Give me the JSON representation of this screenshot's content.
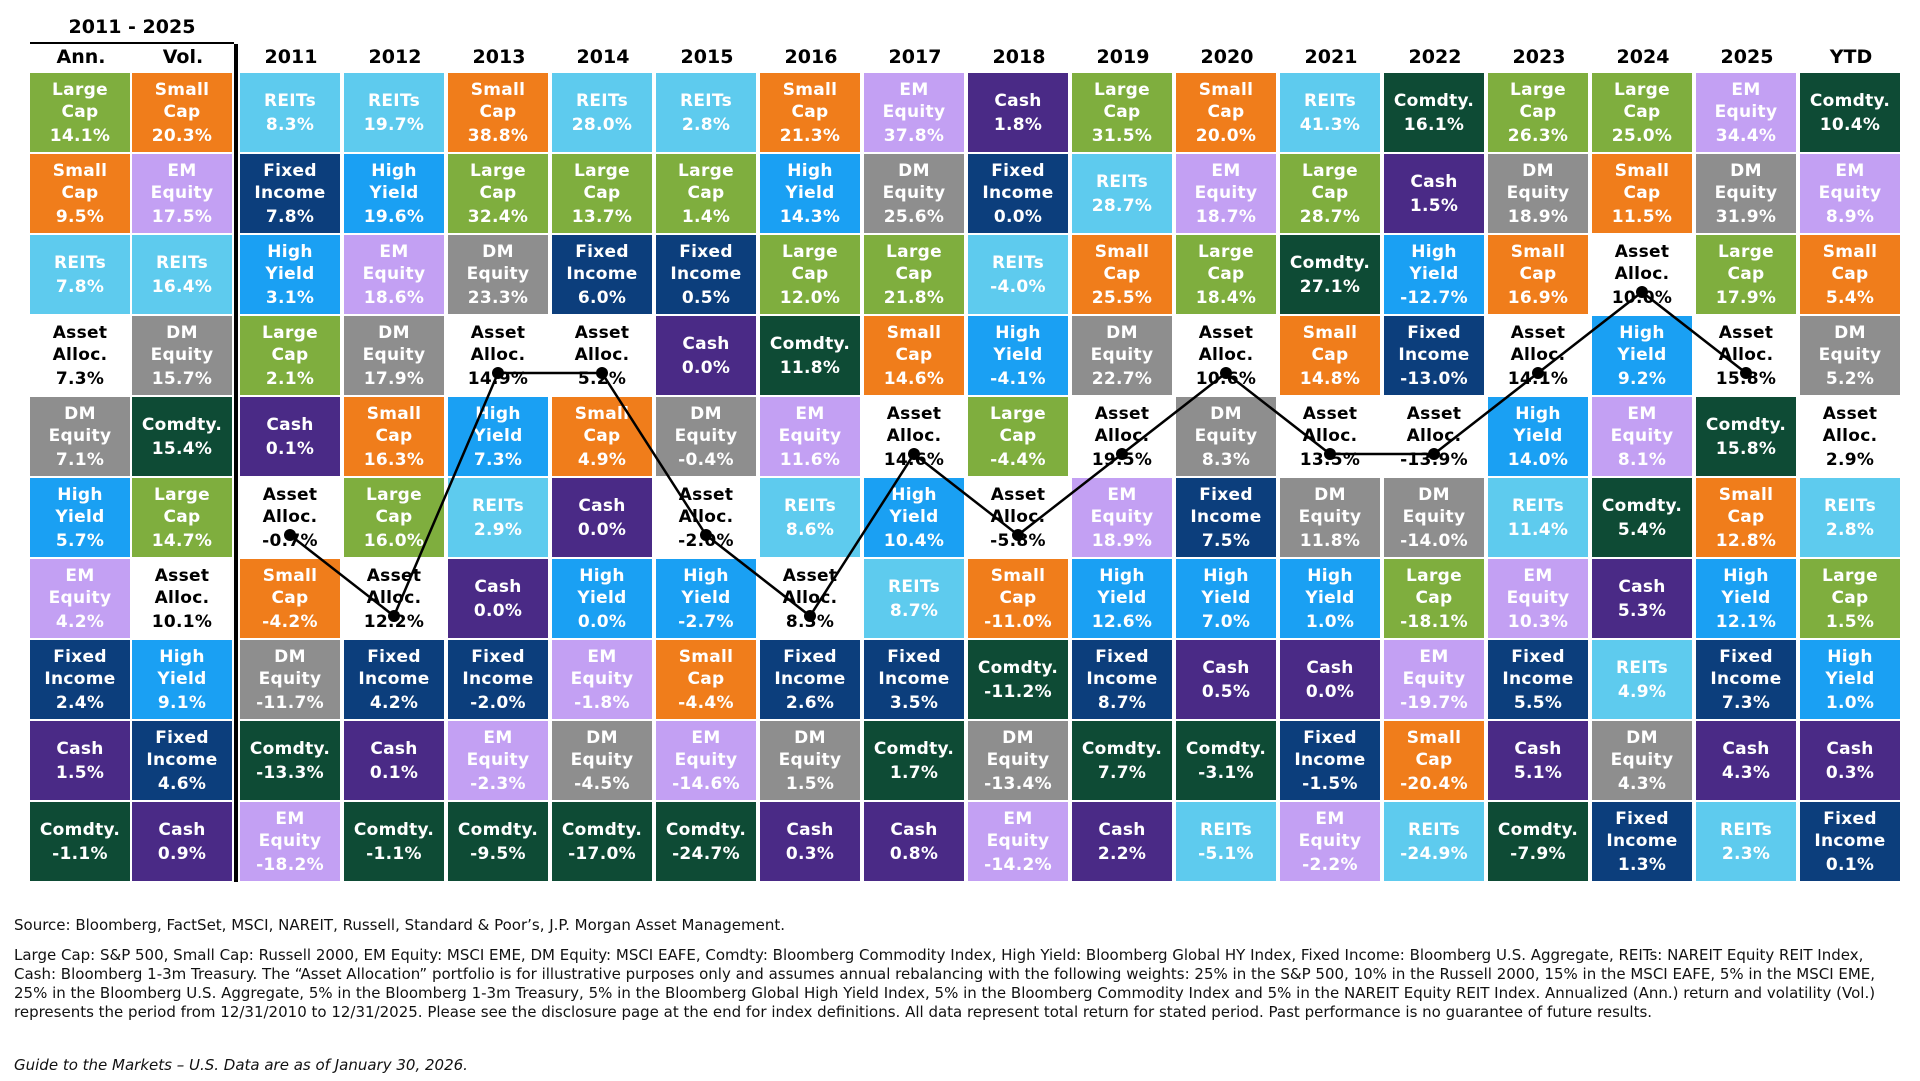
{
  "header": {
    "period": "2011 - 2025",
    "ann_label": "Ann.",
    "vol_label": "Vol.",
    "years": [
      "2011",
      "2012",
      "2013",
      "2014",
      "2015",
      "2016",
      "2017",
      "2018",
      "2019",
      "2020",
      "2021",
      "2022",
      "2023",
      "2024",
      "2025",
      "YTD"
    ]
  },
  "colors": {
    "Large Cap": "#7fae3e",
    "Small Cap": "#f07d1b",
    "EM Equity": "#c3a0f3",
    "DM Equity": "#8e8e8e",
    "REITs": "#5ecbee",
    "Asset Alloc.": "#ffffff",
    "High Yield": "#1aa0f3",
    "Fixed Income": "#0c3e7c",
    "Cash": "#4a2a86",
    "Comdty.": "#0e4b35"
  },
  "chart_data": {
    "type": "table",
    "title": "",
    "ann_vol": [
      {
        "ann": {
          "asset": "Large Cap",
          "value": "14.1%"
        },
        "vol": {
          "asset": "Small Cap",
          "value": "20.3%"
        }
      },
      {
        "ann": {
          "asset": "Small Cap",
          "value": "9.5%"
        },
        "vol": {
          "asset": "EM Equity",
          "value": "17.5%"
        }
      },
      {
        "ann": {
          "asset": "REITs",
          "value": "7.8%"
        },
        "vol": {
          "asset": "REITs",
          "value": "16.4%"
        }
      },
      {
        "ann": {
          "asset": "Asset Alloc.",
          "value": "7.3%"
        },
        "vol": {
          "asset": "DM Equity",
          "value": "15.7%"
        }
      },
      {
        "ann": {
          "asset": "DM Equity",
          "value": "7.1%"
        },
        "vol": {
          "asset": "Comdty.",
          "value": "15.4%"
        }
      },
      {
        "ann": {
          "asset": "High Yield",
          "value": "5.7%"
        },
        "vol": {
          "asset": "Large Cap",
          "value": "14.7%"
        }
      },
      {
        "ann": {
          "asset": "EM Equity",
          "value": "4.2%"
        },
        "vol": {
          "asset": "Asset Alloc.",
          "value": "10.1%"
        }
      },
      {
        "ann": {
          "asset": "Fixed Income",
          "value": "2.4%"
        },
        "vol": {
          "asset": "High Yield",
          "value": "9.1%"
        }
      },
      {
        "ann": {
          "asset": "Cash",
          "value": "1.5%"
        },
        "vol": {
          "asset": "Fixed Income",
          "value": "4.6%"
        }
      },
      {
        "ann": {
          "asset": "Comdty.",
          "value": "-1.1%"
        },
        "vol": {
          "asset": "Cash",
          "value": "0.9%"
        }
      }
    ],
    "years": [
      {
        "year": "2011",
        "cells": [
          [
            "REITs",
            "8.3%"
          ],
          [
            "Fixed Income",
            "7.8%"
          ],
          [
            "High Yield",
            "3.1%"
          ],
          [
            "Large Cap",
            "2.1%"
          ],
          [
            "Cash",
            "0.1%"
          ],
          [
            "Asset Alloc.",
            "-0.7%"
          ],
          [
            "Small Cap",
            "-4.2%"
          ],
          [
            "DM Equity",
            "-11.7%"
          ],
          [
            "Comdty.",
            "-13.3%"
          ],
          [
            "EM Equity",
            "-18.2%"
          ]
        ]
      },
      {
        "year": "2012",
        "cells": [
          [
            "REITs",
            "19.7%"
          ],
          [
            "High Yield",
            "19.6%"
          ],
          [
            "EM Equity",
            "18.6%"
          ],
          [
            "DM Equity",
            "17.9%"
          ],
          [
            "Small Cap",
            "16.3%"
          ],
          [
            "Large Cap",
            "16.0%"
          ],
          [
            "Asset Alloc.",
            "12.2%"
          ],
          [
            "Fixed Income",
            "4.2%"
          ],
          [
            "Cash",
            "0.1%"
          ],
          [
            "Comdty.",
            "-1.1%"
          ]
        ]
      },
      {
        "year": "2013",
        "cells": [
          [
            "Small Cap",
            "38.8%"
          ],
          [
            "Large Cap",
            "32.4%"
          ],
          [
            "DM Equity",
            "23.3%"
          ],
          [
            "Asset Alloc.",
            "14.9%"
          ],
          [
            "High Yield",
            "7.3%"
          ],
          [
            "REITs",
            "2.9%"
          ],
          [
            "Cash",
            "0.0%"
          ],
          [
            "Fixed Income",
            "-2.0%"
          ],
          [
            "EM Equity",
            "-2.3%"
          ],
          [
            "Comdty.",
            "-9.5%"
          ]
        ]
      },
      {
        "year": "2014",
        "cells": [
          [
            "REITs",
            "28.0%"
          ],
          [
            "Large Cap",
            "13.7%"
          ],
          [
            "Fixed Income",
            "6.0%"
          ],
          [
            "Asset Alloc.",
            "5.2%"
          ],
          [
            "Small Cap",
            "4.9%"
          ],
          [
            "Cash",
            "0.0%"
          ],
          [
            "High Yield",
            "0.0%"
          ],
          [
            "EM Equity",
            "-1.8%"
          ],
          [
            "DM Equity",
            "-4.5%"
          ],
          [
            "Comdty.",
            "-17.0%"
          ]
        ]
      },
      {
        "year": "2015",
        "cells": [
          [
            "REITs",
            "2.8%"
          ],
          [
            "Large Cap",
            "1.4%"
          ],
          [
            "Fixed Income",
            "0.5%"
          ],
          [
            "Cash",
            "0.0%"
          ],
          [
            "DM Equity",
            "-0.4%"
          ],
          [
            "Asset Alloc.",
            "-2.0%"
          ],
          [
            "High Yield",
            "-2.7%"
          ],
          [
            "Small Cap",
            "-4.4%"
          ],
          [
            "EM Equity",
            "-14.6%"
          ],
          [
            "Comdty.",
            "-24.7%"
          ]
        ]
      },
      {
        "year": "2016",
        "cells": [
          [
            "Small Cap",
            "21.3%"
          ],
          [
            "High Yield",
            "14.3%"
          ],
          [
            "Large Cap",
            "12.0%"
          ],
          [
            "Comdty.",
            "11.8%"
          ],
          [
            "EM Equity",
            "11.6%"
          ],
          [
            "REITs",
            "8.6%"
          ],
          [
            "Asset Alloc.",
            "8.3%"
          ],
          [
            "Fixed Income",
            "2.6%"
          ],
          [
            "DM Equity",
            "1.5%"
          ],
          [
            "Cash",
            "0.3%"
          ]
        ]
      },
      {
        "year": "2017",
        "cells": [
          [
            "EM Equity",
            "37.8%"
          ],
          [
            "DM Equity",
            "25.6%"
          ],
          [
            "Large Cap",
            "21.8%"
          ],
          [
            "Small Cap",
            "14.6%"
          ],
          [
            "Asset Alloc.",
            "14.6%"
          ],
          [
            "High Yield",
            "10.4%"
          ],
          [
            "REITs",
            "8.7%"
          ],
          [
            "Fixed Income",
            "3.5%"
          ],
          [
            "Comdty.",
            "1.7%"
          ],
          [
            "Cash",
            "0.8%"
          ]
        ]
      },
      {
        "year": "2018",
        "cells": [
          [
            "Cash",
            "1.8%"
          ],
          [
            "Fixed Income",
            "0.0%"
          ],
          [
            "REITs",
            "-4.0%"
          ],
          [
            "High Yield",
            "-4.1%"
          ],
          [
            "Large Cap",
            "-4.4%"
          ],
          [
            "Asset Alloc.",
            "-5.8%"
          ],
          [
            "Small Cap",
            "-11.0%"
          ],
          [
            "Comdty.",
            "-11.2%"
          ],
          [
            "DM Equity",
            "-13.4%"
          ],
          [
            "EM Equity",
            "-14.2%"
          ]
        ]
      },
      {
        "year": "2019",
        "cells": [
          [
            "Large Cap",
            "31.5%"
          ],
          [
            "REITs",
            "28.7%"
          ],
          [
            "Small Cap",
            "25.5%"
          ],
          [
            "DM Equity",
            "22.7%"
          ],
          [
            "Asset Alloc.",
            "19.5%"
          ],
          [
            "EM Equity",
            "18.9%"
          ],
          [
            "High Yield",
            "12.6%"
          ],
          [
            "Fixed Income",
            "8.7%"
          ],
          [
            "Comdty.",
            "7.7%"
          ],
          [
            "Cash",
            "2.2%"
          ]
        ]
      },
      {
        "year": "2020",
        "cells": [
          [
            "Small Cap",
            "20.0%"
          ],
          [
            "EM Equity",
            "18.7%"
          ],
          [
            "Large Cap",
            "18.4%"
          ],
          [
            "Asset Alloc.",
            "10.6%"
          ],
          [
            "DM Equity",
            "8.3%"
          ],
          [
            "Fixed Income",
            "7.5%"
          ],
          [
            "High Yield",
            "7.0%"
          ],
          [
            "Cash",
            "0.5%"
          ],
          [
            "Comdty.",
            "-3.1%"
          ],
          [
            "REITs",
            "-5.1%"
          ]
        ]
      },
      {
        "year": "2021",
        "cells": [
          [
            "REITs",
            "41.3%"
          ],
          [
            "Large Cap",
            "28.7%"
          ],
          [
            "Comdty.",
            "27.1%"
          ],
          [
            "Small Cap",
            "14.8%"
          ],
          [
            "Asset Alloc.",
            "13.5%"
          ],
          [
            "DM Equity",
            "11.8%"
          ],
          [
            "High Yield",
            "1.0%"
          ],
          [
            "Cash",
            "0.0%"
          ],
          [
            "Fixed Income",
            "-1.5%"
          ],
          [
            "EM Equity",
            "-2.2%"
          ]
        ]
      },
      {
        "year": "2022",
        "cells": [
          [
            "Comdty.",
            "16.1%"
          ],
          [
            "Cash",
            "1.5%"
          ],
          [
            "High Yield",
            "-12.7%"
          ],
          [
            "Fixed Income",
            "-13.0%"
          ],
          [
            "Asset Alloc.",
            "-13.9%"
          ],
          [
            "DM Equity",
            "-14.0%"
          ],
          [
            "Large Cap",
            "-18.1%"
          ],
          [
            "EM Equity",
            "-19.7%"
          ],
          [
            "Small Cap",
            "-20.4%"
          ],
          [
            "REITs",
            "-24.9%"
          ]
        ]
      },
      {
        "year": "2023",
        "cells": [
          [
            "Large Cap",
            "26.3%"
          ],
          [
            "DM Equity",
            "18.9%"
          ],
          [
            "Small Cap",
            "16.9%"
          ],
          [
            "Asset Alloc.",
            "14.1%"
          ],
          [
            "High Yield",
            "14.0%"
          ],
          [
            "REITs",
            "11.4%"
          ],
          [
            "EM Equity",
            "10.3%"
          ],
          [
            "Fixed Income",
            "5.5%"
          ],
          [
            "Cash",
            "5.1%"
          ],
          [
            "Comdty.",
            "-7.9%"
          ]
        ]
      },
      {
        "year": "2024",
        "cells": [
          [
            "Large Cap",
            "25.0%"
          ],
          [
            "Small Cap",
            "11.5%"
          ],
          [
            "Asset Alloc.",
            "10.0%"
          ],
          [
            "High Yield",
            "9.2%"
          ],
          [
            "EM Equity",
            "8.1%"
          ],
          [
            "Comdty.",
            "5.4%"
          ],
          [
            "Cash",
            "5.3%"
          ],
          [
            "REITs",
            "4.9%"
          ],
          [
            "DM Equity",
            "4.3%"
          ],
          [
            "Fixed Income",
            "1.3%"
          ]
        ]
      },
      {
        "year": "2025",
        "cells": [
          [
            "EM Equity",
            "34.4%"
          ],
          [
            "DM Equity",
            "31.9%"
          ],
          [
            "Large Cap",
            "17.9%"
          ],
          [
            "Asset Alloc.",
            "15.8%"
          ],
          [
            "Comdty.",
            "15.8%"
          ],
          [
            "Small Cap",
            "12.8%"
          ],
          [
            "High Yield",
            "12.1%"
          ],
          [
            "Fixed Income",
            "7.3%"
          ],
          [
            "Cash",
            "4.3%"
          ],
          [
            "REITs",
            "2.3%"
          ]
        ]
      },
      {
        "year": "YTD",
        "cells": [
          [
            "Comdty.",
            "10.4%"
          ],
          [
            "EM Equity",
            "8.9%"
          ],
          [
            "Small Cap",
            "5.4%"
          ],
          [
            "DM Equity",
            "5.2%"
          ],
          [
            "Asset Alloc.",
            "2.9%"
          ],
          [
            "REITs",
            "2.8%"
          ],
          [
            "Large Cap",
            "1.5%"
          ],
          [
            "High Yield",
            "1.0%"
          ],
          [
            "Cash",
            "0.3%"
          ],
          [
            "Fixed Income",
            "0.1%"
          ]
        ]
      }
    ]
  },
  "notes": {
    "source": "Source: Bloomberg, FactSet, MSCI, NAREIT, Russell, Standard & Poor’s, J.P. Morgan Asset Management.",
    "definitions": "Large Cap: S&P 500, Small Cap: Russell 2000, EM Equity: MSCI EME, DM Equity: MSCI EAFE, Comdty: Bloomberg Commodity Index, High Yield: Bloomberg Global HY Index, Fixed Income: Bloomberg U.S. Aggregate, REITs: NAREIT Equity REIT Index, Cash: Bloomberg 1-3m Treasury. The “Asset Allocation” portfolio is for illustrative purposes only and assumes annual rebalancing with the following weights: 25% in the S&P 500, 10% in the Russell 2000, 15% in the MSCI EAFE, 5% in the MSCI EME, 25% in the Bloomberg U.S. Aggregate, 5% in the Bloomberg 1-3m Treasury, 5% in the Bloomberg Global High Yield Index, 5% in the Bloomberg Commodity Index and 5% in the NAREIT Equity REIT Index. Annualized (Ann.) return and volatility (Vol.) represents the period from 12/31/2010 to 12/31/2025. Please see the disclosure page at the end for index definitions. All data represent total return for stated period. Past performance is no guarantee of future results.",
    "guide": "Guide to the Markets – U.S. Data are as of January 30, 2026."
  }
}
